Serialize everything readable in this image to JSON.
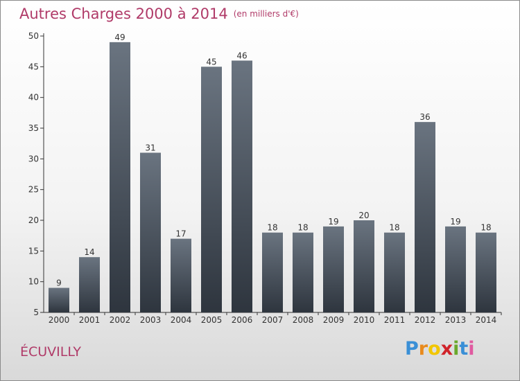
{
  "header": {
    "title": "Autres Charges 2000 à 2014",
    "unit": "(en milliers d'€)"
  },
  "commune": "ÉCUVILLY",
  "logo": {
    "text": "Proxiti",
    "letter_colors": [
      "#3a8fd6",
      "#e98a1c",
      "#f2c600",
      "#d0232a",
      "#6aa82c",
      "#3a8fd6",
      "#e05aa0"
    ]
  },
  "chart_data": {
    "type": "bar",
    "title": "Autres Charges 2000 à 2014",
    "subtitle": "(en milliers d'€)",
    "categories": [
      "2000",
      "2001",
      "2002",
      "2003",
      "2004",
      "2005",
      "2006",
      "2007",
      "2008",
      "2009",
      "2010",
      "2011",
      "2012",
      "2013",
      "2014"
    ],
    "values": [
      9,
      14,
      49,
      31,
      17,
      45,
      46,
      18,
      18,
      19,
      20,
      18,
      36,
      19,
      18
    ],
    "ylim": [
      5,
      50
    ],
    "yticks": [
      5,
      10,
      15,
      20,
      25,
      30,
      35,
      40,
      45,
      50
    ],
    "grid": false,
    "data_labels": true,
    "bar_color_top": "#6a7480",
    "bar_color_bottom": "#2e353e"
  }
}
